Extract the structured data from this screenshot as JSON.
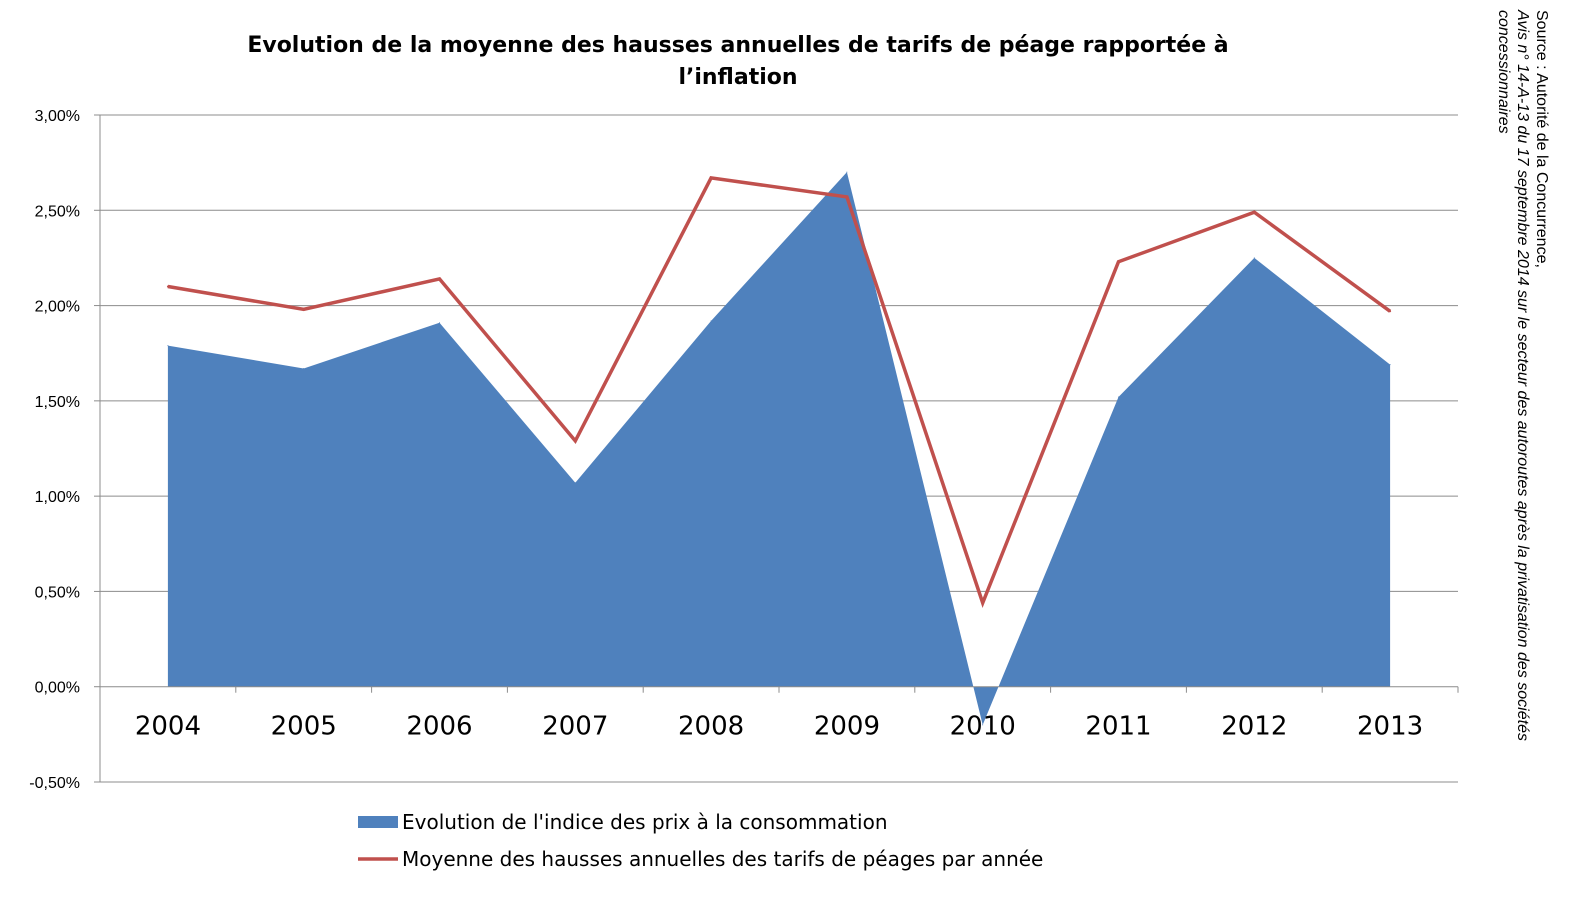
{
  "chart_data": {
    "type": "area",
    "title_lines": [
      "Evolution de la moyenne des hausses annuelles de tarifs de péage rapportée à",
      "l’inflation"
    ],
    "categories": [
      "2004",
      "2005",
      "2006",
      "2007",
      "2008",
      "2009",
      "2010",
      "2011",
      "2012",
      "2013"
    ],
    "series": [
      {
        "name": "Evolution de l'indice des prix à la consommation",
        "type": "area",
        "color": "#4f81bd",
        "values": [
          1.79,
          1.67,
          1.91,
          1.07,
          1.92,
          2.7,
          -0.2,
          1.52,
          2.25,
          1.69
        ]
      },
      {
        "name": "Moyenne des hausses annuelles des tarifs de péages par année",
        "type": "line",
        "color": "#c0504d",
        "values": [
          2.1,
          1.98,
          2.14,
          1.29,
          2.67,
          2.57,
          0.44,
          2.23,
          2.49,
          1.97
        ]
      }
    ],
    "ylim": [
      -0.5,
      3.0
    ],
    "yticks": [
      3.0,
      2.5,
      2.0,
      1.5,
      1.0,
      0.5,
      0.0,
      -0.5
    ],
    "ytick_labels": [
      "3,00%",
      "2,50%",
      "2,00%",
      "1,50%",
      "1,00%",
      "0,50%",
      "0,00%",
      "-0,50%"
    ],
    "grid": true,
    "legend_position": "bottom"
  },
  "source": {
    "line1": "Source : Autorité de la Concurrence,",
    "line2": "Avis n° 14-A-13 du 17 septembre 2014 sur le secteur des autoroutes après la privatisation des sociétés",
    "line3": "concessionnaires"
  }
}
